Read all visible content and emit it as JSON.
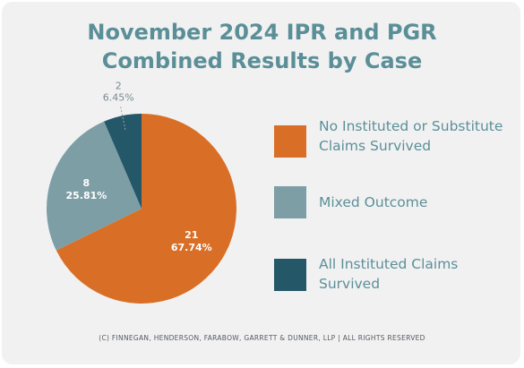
{
  "chart_data": {
    "type": "pie",
    "title_lines": [
      "November 2024 IPR and PGR",
      "Combined Results by Case"
    ],
    "slices": [
      {
        "name": "No Instituted or Substitute Claims Survived",
        "legend_lines": [
          "No Instituted or Substitute",
          "Claims Survived"
        ],
        "value": 21,
        "percent": "67.74%",
        "color": "#d96f27"
      },
      {
        "name": "Mixed Outcome",
        "legend_lines": [
          "Mixed Outcome"
        ],
        "value": 8,
        "percent": "25.81%",
        "color": "#7e9ea6"
      },
      {
        "name": "All Instituted Claims Survived",
        "legend_lines": [
          "All Instituted Claims",
          "Survived"
        ],
        "value": 2,
        "percent": "6.45%",
        "color": "#245768"
      }
    ],
    "legend_placement": "right"
  },
  "footer": "(C) FINNEGAN, HENDERSON, FARABOW, GARRETT & DUNNER, LLP | ALL RIGHTS RESERVED"
}
